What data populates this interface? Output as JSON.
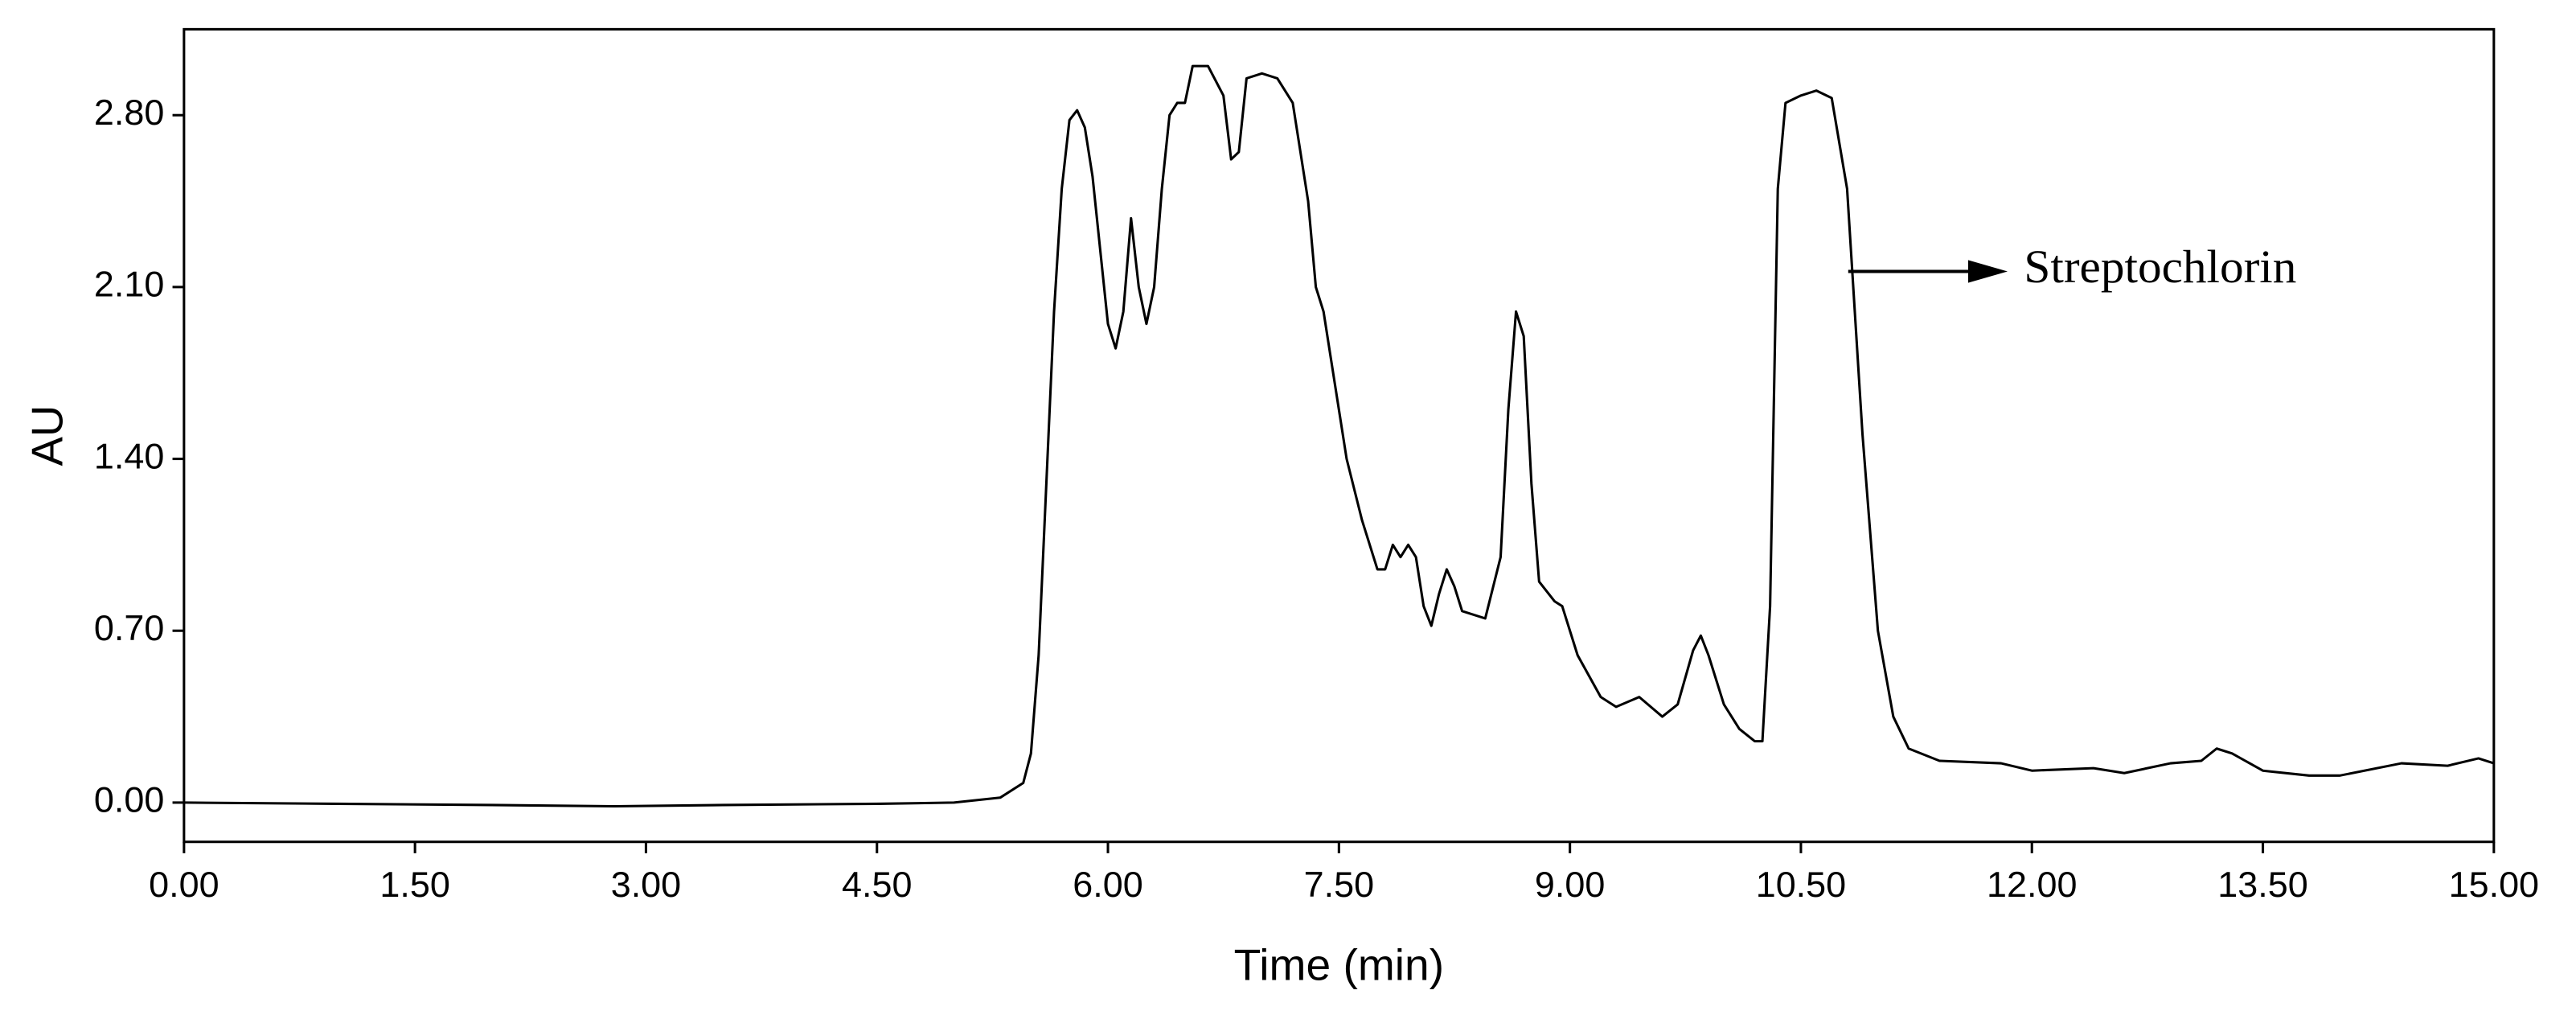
{
  "chart_data": {
    "type": "line",
    "x_label": "Time (min)",
    "y_label": "AU",
    "annotation": "Streptochlorin",
    "xlim": [
      0,
      15
    ],
    "ylim": [
      -0.16,
      3.15
    ],
    "xticks": [
      {
        "value": 0,
        "label": "0.00"
      },
      {
        "value": 1.5,
        "label": "1.50"
      },
      {
        "value": 3,
        "label": "3.00"
      },
      {
        "value": 4.5,
        "label": "4.50"
      },
      {
        "value": 6,
        "label": "6.00"
      },
      {
        "value": 7.5,
        "label": "7.50"
      },
      {
        "value": 9,
        "label": "9.00"
      },
      {
        "value": 10.5,
        "label": "10.50"
      },
      {
        "value": 12,
        "label": "12.00"
      },
      {
        "value": 13.5,
        "label": "13.50"
      },
      {
        "value": 15,
        "label": "15.00"
      }
    ],
    "yticks": [
      {
        "value": 0,
        "label": "0.00"
      },
      {
        "value": 0.7,
        "label": "0.70"
      },
      {
        "value": 1.4,
        "label": "1.40"
      },
      {
        "value": 2.1,
        "label": "2.10"
      },
      {
        "value": 2.8,
        "label": "2.80"
      }
    ],
    "color": "#000000",
    "x": [
      0,
      1.0,
      2.0,
      2.8,
      3.5,
      4.5,
      5.0,
      5.3,
      5.45,
      5.5,
      5.55,
      5.6,
      5.65,
      5.7,
      5.75,
      5.8,
      5.85,
      5.9,
      5.95,
      6.0,
      6.05,
      6.1,
      6.15,
      6.2,
      6.25,
      6.3,
      6.35,
      6.4,
      6.45,
      6.5,
      6.55,
      6.65,
      6.75,
      6.8,
      6.85,
      6.9,
      7.0,
      7.1,
      7.2,
      7.3,
      7.35,
      7.4,
      7.45,
      7.55,
      7.65,
      7.75,
      7.8,
      7.85,
      7.9,
      7.95,
      8.0,
      8.05,
      8.1,
      8.15,
      8.2,
      8.25,
      8.3,
      8.45,
      8.55,
      8.6,
      8.65,
      8.7,
      8.75,
      8.8,
      8.9,
      8.95,
      9.05,
      9.2,
      9.3,
      9.45,
      9.6,
      9.7,
      9.8,
      9.85,
      9.9,
      10.0,
      10.1,
      10.2,
      10.25,
      10.3,
      10.35,
      10.4,
      10.5,
      10.6,
      10.7,
      10.8,
      10.9,
      11.0,
      11.1,
      11.2,
      11.4,
      11.8,
      12.0,
      12.4,
      12.6,
      12.9,
      13.1,
      13.2,
      13.3,
      13.5,
      13.8,
      14.0,
      14.4,
      14.7,
      14.9,
      15.0
    ],
    "values": [
      0,
      -0.005,
      -0.01,
      -0.015,
      -0.01,
      -0.005,
      0,
      0.02,
      0.08,
      0.2,
      0.6,
      1.3,
      2.0,
      2.5,
      2.78,
      2.82,
      2.75,
      2.55,
      2.25,
      1.95,
      1.85,
      2.0,
      2.38,
      2.1,
      1.95,
      2.1,
      2.5,
      2.8,
      2.85,
      2.85,
      3.0,
      3.0,
      2.88,
      2.62,
      2.65,
      2.95,
      2.97,
      2.95,
      2.85,
      2.45,
      2.1,
      2.0,
      1.8,
      1.4,
      1.15,
      0.95,
      0.95,
      1.05,
      1.0,
      1.05,
      1.0,
      0.8,
      0.72,
      0.85,
      0.95,
      0.88,
      0.78,
      0.75,
      1.0,
      1.6,
      2.0,
      1.9,
      1.3,
      0.9,
      0.82,
      0.8,
      0.6,
      0.43,
      0.39,
      0.43,
      0.35,
      0.4,
      0.62,
      0.68,
      0.6,
      0.4,
      0.3,
      0.25,
      0.25,
      0.8,
      2.5,
      2.85,
      2.88,
      2.9,
      2.87,
      2.5,
      1.5,
      0.7,
      0.35,
      0.22,
      0.17,
      0.16,
      0.13,
      0.14,
      0.12,
      0.16,
      0.17,
      0.22,
      0.2,
      0.13,
      0.11,
      0.11,
      0.16,
      0.15,
      0.18,
      0.16
    ]
  }
}
